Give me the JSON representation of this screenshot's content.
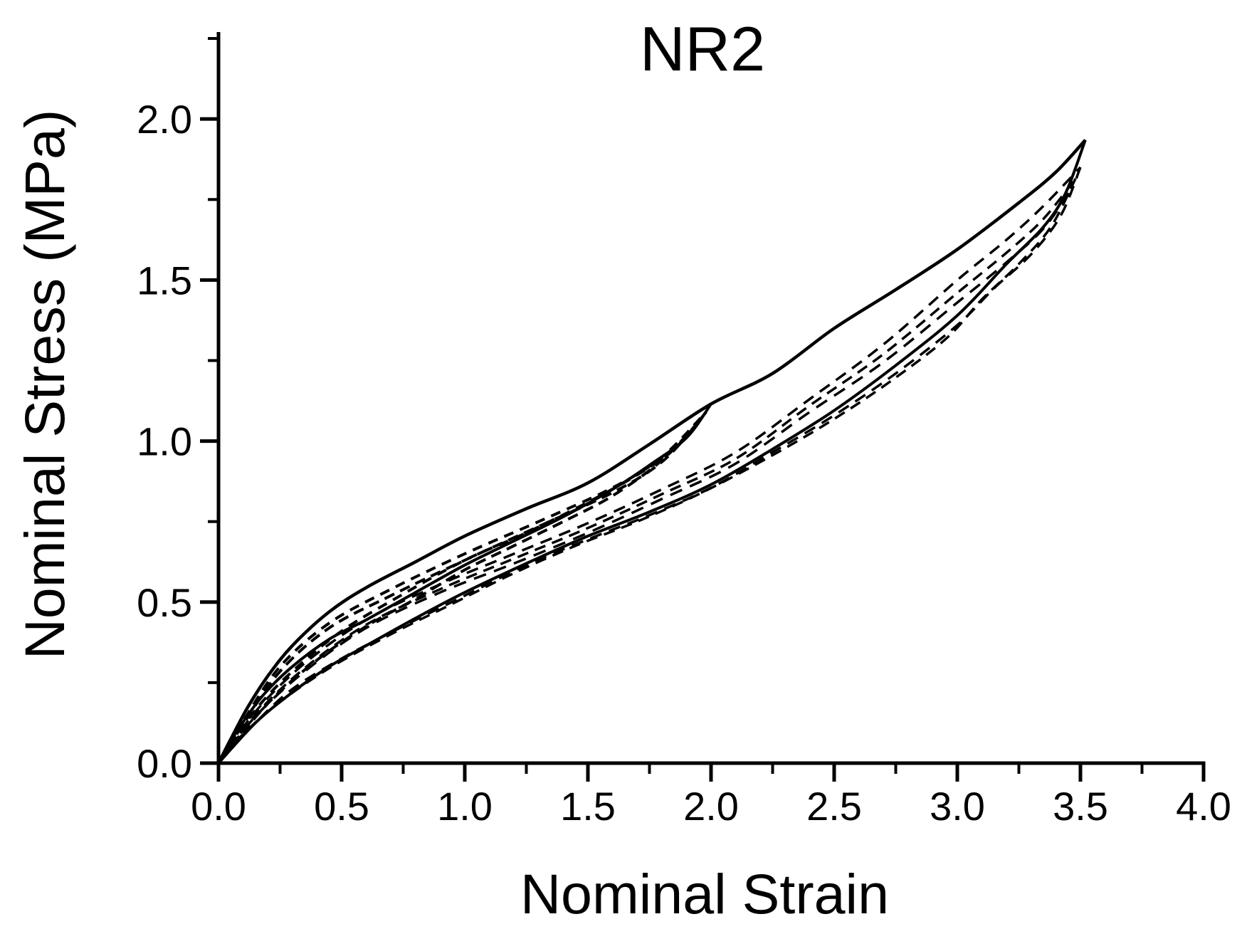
{
  "colors": {
    "foreground": "#000000",
    "background": "#ffffff"
  },
  "chart_data": {
    "type": "line",
    "title": "NR2",
    "xlabel": "Nominal Strain",
    "ylabel": "Nominal Stress (MPa)",
    "xlim": [
      0,
      4.0
    ],
    "ylim": [
      0,
      2.27
    ],
    "grid": false,
    "legend": "none",
    "x_major_ticks": [
      0.0,
      0.5,
      1.0,
      1.5,
      2.0,
      2.5,
      3.0,
      3.5,
      4.0
    ],
    "x_major_tick_labels": [
      "0.0",
      "0.5",
      "1.0",
      "1.5",
      "2.0",
      "2.5",
      "3.0",
      "3.5",
      "4.0"
    ],
    "x_minor_ticks": [
      0.25,
      0.75,
      1.25,
      1.75,
      2.25,
      2.75,
      3.25,
      3.75
    ],
    "y_major_ticks": [
      0.0,
      0.5,
      1.0,
      1.5,
      2.0
    ],
    "y_major_tick_labels": [
      "0.0",
      "0.5",
      "1.0",
      "1.5",
      "2.0"
    ],
    "y_minor_ticks": [
      0.25,
      0.75,
      1.25,
      1.75,
      2.25
    ],
    "series": [
      {
        "name": "primary-loading-to-3.5",
        "style": "solid",
        "width": 4.5,
        "dash": null,
        "points": [
          [
            0,
            0
          ],
          [
            0.05,
            0.075
          ],
          [
            0.12,
            0.175
          ],
          [
            0.2,
            0.27
          ],
          [
            0.3,
            0.365
          ],
          [
            0.45,
            0.47
          ],
          [
            0.6,
            0.545
          ],
          [
            0.8,
            0.625
          ],
          [
            1.0,
            0.705
          ],
          [
            1.25,
            0.79
          ],
          [
            1.5,
            0.87
          ],
          [
            1.75,
            0.99
          ],
          [
            2.0,
            1.115
          ],
          [
            2.25,
            1.21
          ],
          [
            2.5,
            1.35
          ],
          [
            2.75,
            1.47
          ],
          [
            3.0,
            1.595
          ],
          [
            3.25,
            1.74
          ],
          [
            3.4,
            1.835
          ],
          [
            3.52,
            1.935
          ]
        ]
      },
      {
        "name": "unloading-from-2.0-cycle1",
        "style": "solid",
        "width": 4,
        "dash": null,
        "points": [
          [
            2.0,
            1.115
          ],
          [
            1.9,
            1.01
          ],
          [
            1.75,
            0.925
          ],
          [
            1.6,
            0.85
          ],
          [
            1.4,
            0.765
          ],
          [
            1.2,
            0.69
          ],
          [
            1.0,
            0.615
          ],
          [
            0.8,
            0.53
          ],
          [
            0.6,
            0.445
          ],
          [
            0.45,
            0.385
          ],
          [
            0.3,
            0.3
          ],
          [
            0.18,
            0.21
          ],
          [
            0.08,
            0.105
          ],
          [
            0,
            0
          ]
        ]
      },
      {
        "name": "reloading-to-2.0-cycle2",
        "style": "dashed",
        "width": 4,
        "dash": [
          14,
          10
        ],
        "points": [
          [
            0,
            0
          ],
          [
            0.1,
            0.13
          ],
          [
            0.25,
            0.3
          ],
          [
            0.45,
            0.435
          ],
          [
            0.7,
            0.54
          ],
          [
            1.0,
            0.65
          ],
          [
            1.3,
            0.75
          ],
          [
            1.6,
            0.855
          ],
          [
            1.8,
            0.95
          ],
          [
            1.98,
            1.09
          ]
        ]
      },
      {
        "name": "unloading-from-2.0-cycle2",
        "style": "dashed",
        "width": 4,
        "dash": [
          14,
          10
        ],
        "points": [
          [
            1.98,
            1.09
          ],
          [
            1.85,
            0.975
          ],
          [
            1.7,
            0.895
          ],
          [
            1.5,
            0.81
          ],
          [
            1.25,
            0.715
          ],
          [
            1.0,
            0.63
          ],
          [
            0.75,
            0.525
          ],
          [
            0.5,
            0.41
          ],
          [
            0.3,
            0.285
          ],
          [
            0.15,
            0.165
          ],
          [
            0,
            0
          ]
        ]
      },
      {
        "name": "reloading-to-2.0-cycle3",
        "style": "dashed",
        "width": 4,
        "dash": [
          15,
          9
        ],
        "points": [
          [
            0,
            0
          ],
          [
            0.1,
            0.12
          ],
          [
            0.25,
            0.285
          ],
          [
            0.45,
            0.42
          ],
          [
            0.7,
            0.52
          ],
          [
            1.0,
            0.63
          ],
          [
            1.3,
            0.735
          ],
          [
            1.6,
            0.84
          ],
          [
            1.8,
            0.935
          ],
          [
            1.95,
            1.06
          ]
        ]
      },
      {
        "name": "unloading-from-2.0-cycle3",
        "style": "dashed",
        "width": 4,
        "dash": [
          15,
          9
        ],
        "points": [
          [
            1.95,
            1.06
          ],
          [
            1.8,
            0.94
          ],
          [
            1.6,
            0.83
          ],
          [
            1.4,
            0.75
          ],
          [
            1.2,
            0.675
          ],
          [
            1.0,
            0.6
          ],
          [
            0.8,
            0.51
          ],
          [
            0.6,
            0.425
          ],
          [
            0.4,
            0.32
          ],
          [
            0.2,
            0.185
          ],
          [
            0,
            0
          ]
        ]
      },
      {
        "name": "unloading-from-3.5-cycle1",
        "style": "solid",
        "width": 4,
        "dash": null,
        "points": [
          [
            3.52,
            1.935
          ],
          [
            3.44,
            1.77
          ],
          [
            3.35,
            1.665
          ],
          [
            3.2,
            1.55
          ],
          [
            3.0,
            1.39
          ],
          [
            2.75,
            1.235
          ],
          [
            2.5,
            1.095
          ],
          [
            2.25,
            0.975
          ],
          [
            2.0,
            0.865
          ],
          [
            1.75,
            0.78
          ],
          [
            1.5,
            0.705
          ],
          [
            1.25,
            0.62
          ],
          [
            1.0,
            0.53
          ],
          [
            0.8,
            0.45
          ],
          [
            0.6,
            0.365
          ],
          [
            0.45,
            0.3
          ],
          [
            0.3,
            0.22
          ],
          [
            0.15,
            0.125
          ],
          [
            0,
            0
          ]
        ]
      },
      {
        "name": "reloading-to-3.5-cycle2",
        "style": "dashed",
        "width": 3.5,
        "dash": [
          17,
          11
        ],
        "points": [
          [
            0,
            0
          ],
          [
            0.15,
            0.16
          ],
          [
            0.35,
            0.31
          ],
          [
            0.6,
            0.445
          ],
          [
            0.9,
            0.555
          ],
          [
            1.2,
            0.65
          ],
          [
            1.5,
            0.745
          ],
          [
            1.8,
            0.85
          ],
          [
            2.1,
            0.965
          ],
          [
            2.4,
            1.13
          ],
          [
            2.7,
            1.3
          ],
          [
            3.0,
            1.5
          ],
          [
            3.2,
            1.625
          ],
          [
            3.35,
            1.73
          ],
          [
            3.5,
            1.85
          ]
        ]
      },
      {
        "name": "unloading-from-3.5-cycle2",
        "style": "dashed",
        "width": 3.5,
        "dash": [
          17,
          11
        ],
        "points": [
          [
            3.5,
            1.85
          ],
          [
            3.42,
            1.7
          ],
          [
            3.3,
            1.58
          ],
          [
            3.15,
            1.475
          ],
          [
            3.0,
            1.36
          ],
          [
            2.75,
            1.21
          ],
          [
            2.5,
            1.08
          ],
          [
            2.25,
            0.965
          ],
          [
            2.0,
            0.855
          ],
          [
            1.75,
            0.77
          ],
          [
            1.5,
            0.695
          ],
          [
            1.25,
            0.615
          ],
          [
            1.0,
            0.52
          ],
          [
            0.75,
            0.425
          ],
          [
            0.5,
            0.325
          ],
          [
            0.3,
            0.23
          ],
          [
            0.15,
            0.125
          ],
          [
            0,
            0
          ]
        ]
      },
      {
        "name": "reloading-to-3.5-cycle3",
        "style": "dashed",
        "width": 3.5,
        "dash": [
          16,
          10
        ],
        "points": [
          [
            0,
            0
          ],
          [
            0.15,
            0.15
          ],
          [
            0.35,
            0.295
          ],
          [
            0.6,
            0.43
          ],
          [
            0.9,
            0.54
          ],
          [
            1.2,
            0.635
          ],
          [
            1.5,
            0.73
          ],
          [
            1.8,
            0.835
          ],
          [
            2.1,
            0.945
          ],
          [
            2.4,
            1.11
          ],
          [
            2.7,
            1.27
          ],
          [
            3.0,
            1.46
          ],
          [
            3.2,
            1.585
          ],
          [
            3.35,
            1.69
          ],
          [
            3.48,
            1.815
          ]
        ]
      },
      {
        "name": "unloading-from-3.5-cycle3",
        "style": "dashed",
        "width": 3.5,
        "dash": [
          16,
          10
        ],
        "points": [
          [
            3.48,
            1.815
          ],
          [
            3.38,
            1.665
          ],
          [
            3.25,
            1.55
          ],
          [
            3.1,
            1.44
          ],
          [
            2.95,
            1.315
          ],
          [
            2.7,
            1.17
          ],
          [
            2.45,
            1.045
          ],
          [
            2.2,
            0.935
          ],
          [
            1.95,
            0.835
          ],
          [
            1.7,
            0.75
          ],
          [
            1.45,
            0.675
          ],
          [
            1.2,
            0.59
          ],
          [
            0.95,
            0.495
          ],
          [
            0.7,
            0.4
          ],
          [
            0.45,
            0.295
          ],
          [
            0.25,
            0.19
          ],
          [
            0.1,
            0.09
          ],
          [
            0,
            0
          ]
        ]
      },
      {
        "name": "reloading-to-3.5-cycle4",
        "style": "dashed",
        "width": 3.5,
        "dash": [
          18,
          12
        ],
        "points": [
          [
            0,
            0
          ],
          [
            0.15,
            0.145
          ],
          [
            0.35,
            0.285
          ],
          [
            0.6,
            0.42
          ],
          [
            0.9,
            0.53
          ],
          [
            1.2,
            0.62
          ],
          [
            1.5,
            0.715
          ],
          [
            1.8,
            0.82
          ],
          [
            2.1,
            0.93
          ],
          [
            2.4,
            1.09
          ],
          [
            2.7,
            1.245
          ],
          [
            3.0,
            1.43
          ],
          [
            3.2,
            1.555
          ],
          [
            3.35,
            1.66
          ],
          [
            3.47,
            1.79
          ]
        ]
      }
    ]
  }
}
